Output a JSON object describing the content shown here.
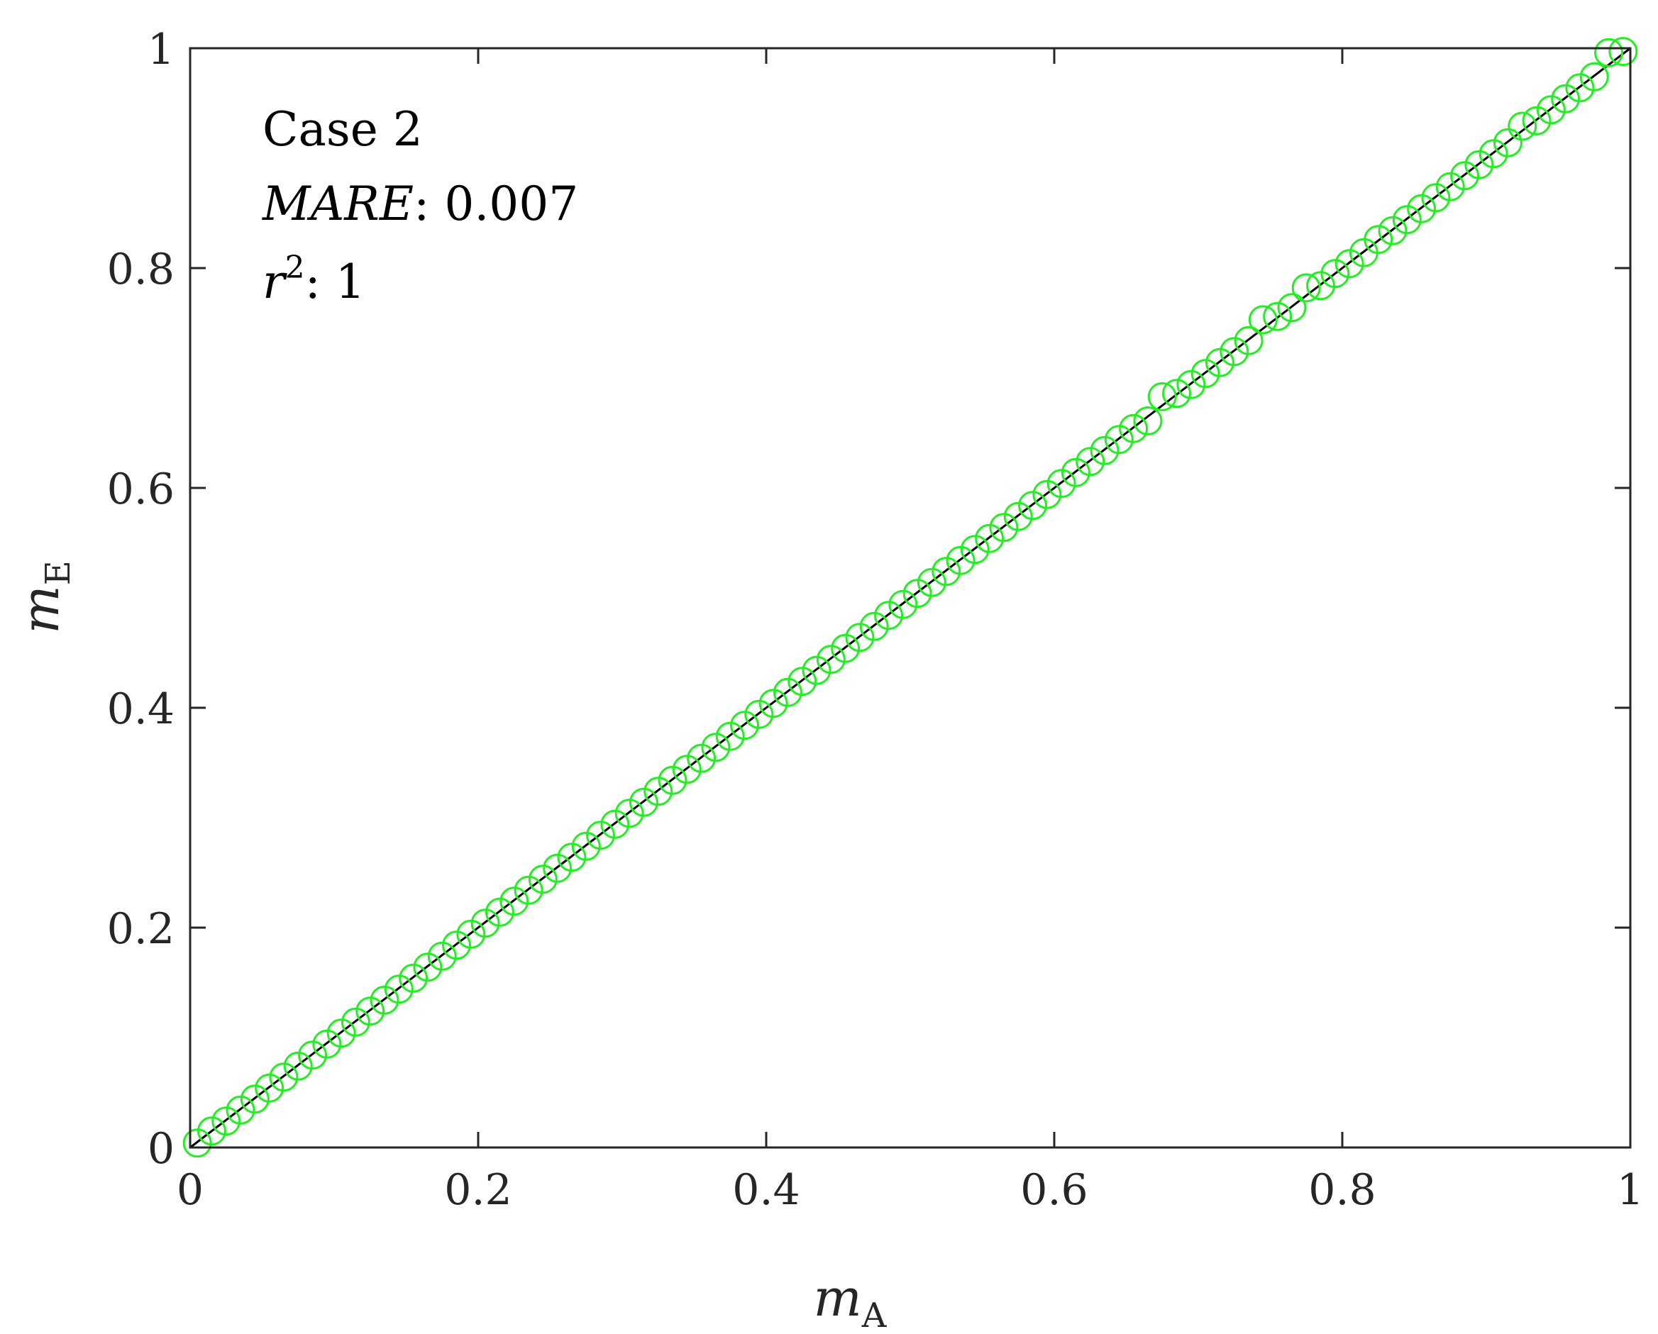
{
  "chart_data": {
    "type": "scatter",
    "title": "",
    "xlabel": {
      "base": "m",
      "sub": "A"
    },
    "ylabel": {
      "base": "m",
      "sub": "E"
    },
    "xlim": [
      0,
      1
    ],
    "ylim": [
      0,
      1
    ],
    "xticks": [
      "0",
      "0.2",
      "0.4",
      "0.6",
      "0.8",
      "1"
    ],
    "yticks": [
      "0",
      "0.2",
      "0.4",
      "0.6",
      "0.8",
      "1"
    ],
    "grid": false,
    "legend": "none",
    "colors": {
      "marker": "#22ee22",
      "reference_line": "#000000",
      "axes": "#262626"
    },
    "annotations": {
      "case": "Case 2",
      "mare_label": "MARE",
      "mare_value": ": 0.007",
      "r2_base": "r",
      "r2_exp": "2",
      "r2_value": ":  1"
    },
    "reference_line": {
      "x": [
        0,
        1
      ],
      "y": [
        0,
        1
      ]
    },
    "series": [
      {
        "marker": "circle-open",
        "points": [
          [
            0.005,
            0.004
          ],
          [
            0.015,
            0.015
          ],
          [
            0.025,
            0.024
          ],
          [
            0.035,
            0.034
          ],
          [
            0.045,
            0.044
          ],
          [
            0.055,
            0.054
          ],
          [
            0.065,
            0.064
          ],
          [
            0.075,
            0.074
          ],
          [
            0.085,
            0.084
          ],
          [
            0.095,
            0.094
          ],
          [
            0.105,
            0.104
          ],
          [
            0.115,
            0.114
          ],
          [
            0.125,
            0.124
          ],
          [
            0.135,
            0.134
          ],
          [
            0.145,
            0.144
          ],
          [
            0.155,
            0.154
          ],
          [
            0.165,
            0.164
          ],
          [
            0.175,
            0.174
          ],
          [
            0.185,
            0.184
          ],
          [
            0.195,
            0.194
          ],
          [
            0.205,
            0.204
          ],
          [
            0.215,
            0.214
          ],
          [
            0.225,
            0.224
          ],
          [
            0.235,
            0.234
          ],
          [
            0.245,
            0.244
          ],
          [
            0.255,
            0.254
          ],
          [
            0.265,
            0.264
          ],
          [
            0.275,
            0.274
          ],
          [
            0.285,
            0.284
          ],
          [
            0.295,
            0.294
          ],
          [
            0.305,
            0.304
          ],
          [
            0.315,
            0.314
          ],
          [
            0.325,
            0.324
          ],
          [
            0.335,
            0.334
          ],
          [
            0.345,
            0.344
          ],
          [
            0.355,
            0.354
          ],
          [
            0.365,
            0.364
          ],
          [
            0.375,
            0.374
          ],
          [
            0.385,
            0.384
          ],
          [
            0.395,
            0.394
          ],
          [
            0.405,
            0.404
          ],
          [
            0.415,
            0.414
          ],
          [
            0.425,
            0.424
          ],
          [
            0.435,
            0.434
          ],
          [
            0.445,
            0.444
          ],
          [
            0.455,
            0.454
          ],
          [
            0.465,
            0.464
          ],
          [
            0.475,
            0.474
          ],
          [
            0.485,
            0.484
          ],
          [
            0.495,
            0.494
          ],
          [
            0.505,
            0.504
          ],
          [
            0.515,
            0.514
          ],
          [
            0.525,
            0.524
          ],
          [
            0.535,
            0.534
          ],
          [
            0.545,
            0.544
          ],
          [
            0.555,
            0.554
          ],
          [
            0.565,
            0.564
          ],
          [
            0.575,
            0.574
          ],
          [
            0.585,
            0.584
          ],
          [
            0.595,
            0.594
          ],
          [
            0.605,
            0.604
          ],
          [
            0.615,
            0.614
          ],
          [
            0.625,
            0.624
          ],
          [
            0.635,
            0.634
          ],
          [
            0.645,
            0.644
          ],
          [
            0.655,
            0.654
          ],
          [
            0.665,
            0.661
          ],
          [
            0.675,
            0.683
          ],
          [
            0.685,
            0.686
          ],
          [
            0.695,
            0.694
          ],
          [
            0.705,
            0.704
          ],
          [
            0.715,
            0.714
          ],
          [
            0.725,
            0.724
          ],
          [
            0.735,
            0.734
          ],
          [
            0.745,
            0.753
          ],
          [
            0.755,
            0.756
          ],
          [
            0.765,
            0.764
          ],
          [
            0.775,
            0.782
          ],
          [
            0.785,
            0.784
          ],
          [
            0.795,
            0.795
          ],
          [
            0.805,
            0.804
          ],
          [
            0.815,
            0.814
          ],
          [
            0.825,
            0.826
          ],
          [
            0.835,
            0.834
          ],
          [
            0.845,
            0.844
          ],
          [
            0.855,
            0.854
          ],
          [
            0.865,
            0.864
          ],
          [
            0.875,
            0.874
          ],
          [
            0.885,
            0.884
          ],
          [
            0.895,
            0.894
          ],
          [
            0.905,
            0.904
          ],
          [
            0.915,
            0.914
          ],
          [
            0.925,
            0.929
          ],
          [
            0.935,
            0.934
          ],
          [
            0.945,
            0.944
          ],
          [
            0.955,
            0.954
          ],
          [
            0.965,
            0.964
          ],
          [
            0.975,
            0.974
          ],
          [
            0.985,
            0.996
          ],
          [
            0.995,
            0.997
          ]
        ]
      }
    ]
  }
}
